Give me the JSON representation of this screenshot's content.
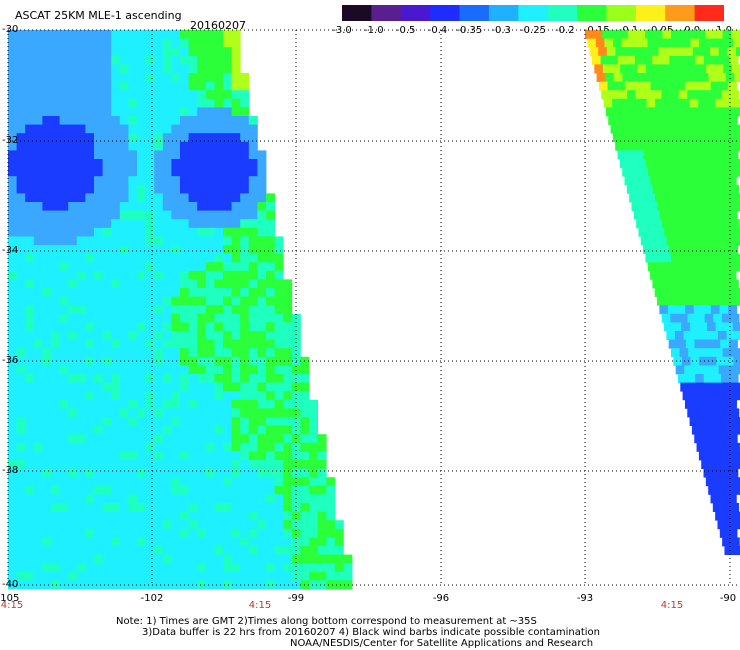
{
  "header": {
    "title": "ASCAT 25KM MLE-1 ascending",
    "date": "20160207"
  },
  "colorbar": {
    "ticks": [
      "-3.0",
      "-1.0",
      "-0.5",
      "-0.4",
      "-0.35",
      "-0.3",
      "-0.25",
      "-0.2",
      "-0.15",
      "-0.1",
      "-0.05",
      "0.0",
      "1.0"
    ],
    "colors": [
      "#1a0a26",
      "#5a1f8f",
      "#4a18d0",
      "#1f2cff",
      "#1a6cff",
      "#1fb0ff",
      "#1ff0ff",
      "#1fffc0",
      "#2aff3a",
      "#9aff1a",
      "#fff01a",
      "#ff9a1a",
      "#ff2a1a"
    ]
  },
  "axes": {
    "lat_labels": [
      "-30",
      "-32",
      "-34",
      "-36",
      "-38",
      "-40"
    ],
    "lon_labels": [
      "-105",
      "-102",
      "-99",
      "-96",
      "-93",
      "-90"
    ],
    "time_labels": [
      "4:15",
      "4:15",
      "4:15"
    ]
  },
  "notes": {
    "line1": "Note: 1) Times are GMT 2)Times along bottom correspond to measurement at ~35S",
    "line2": "3)Data buffer is 22 hrs from 20160207 4) Black wind barbs indicate possible contamination",
    "line3": "NOAA/NESDIS/Center for Satellite Applications and Research"
  },
  "palette": {
    "blue": "#1a3cff",
    "light_blue": "#3aa8ff",
    "cyan": "#1ff0ff",
    "aqua": "#1fffc0",
    "green": "#2aff3a",
    "yellow_green": "#b0ff1a",
    "yellow": "#fff01a",
    "orange": "#ff8a1a",
    "red": "#ff2a1a"
  }
}
